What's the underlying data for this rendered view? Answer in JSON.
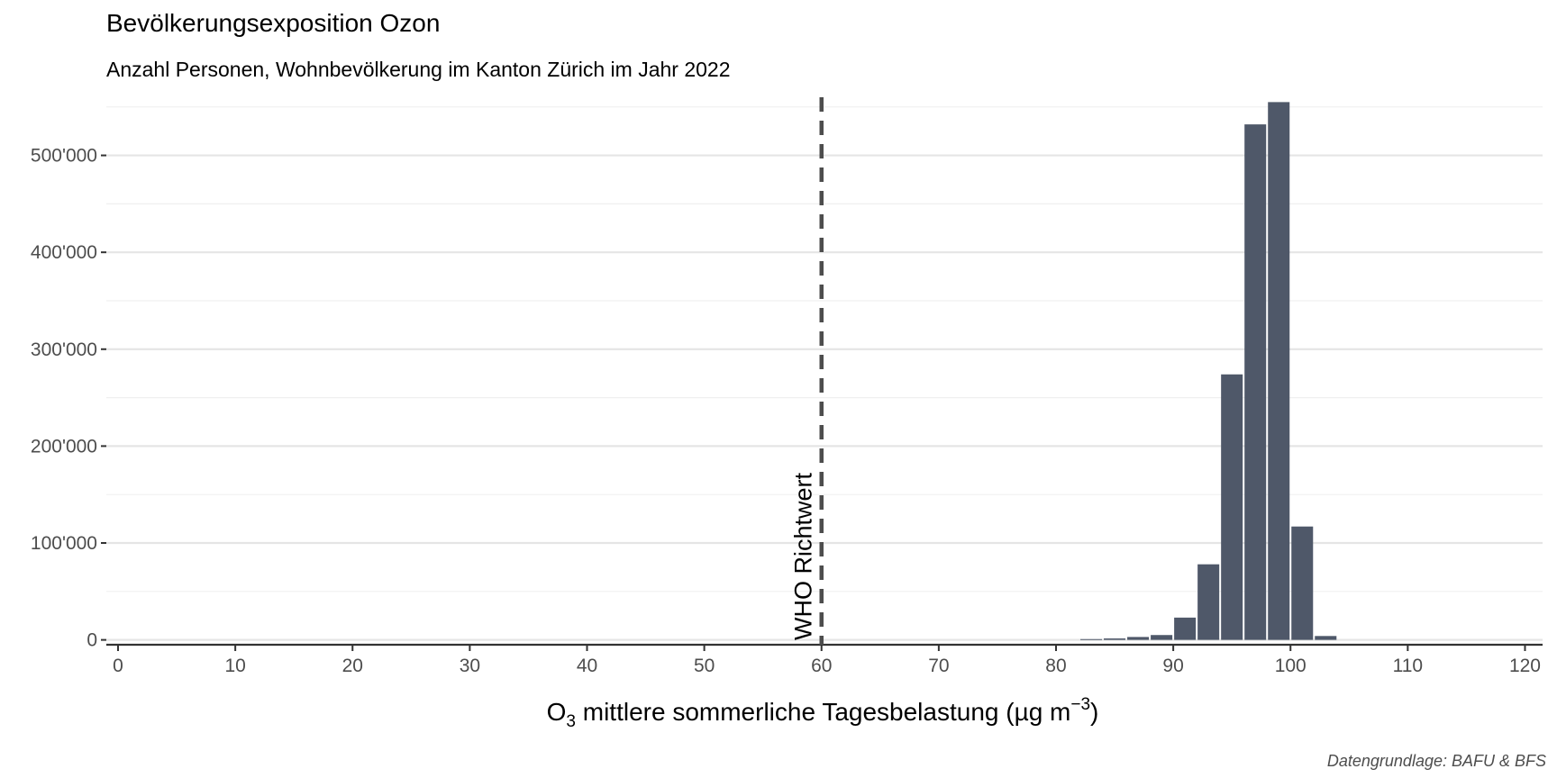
{
  "chart_data": {
    "type": "bar",
    "title": "Bevölkerungsexposition Ozon",
    "subtitle": "Anzahl Personen, Wohnbevölkerung im Kanton Zürich im Jahr 2022",
    "xlabel": {
      "base": "O",
      "sub": "3",
      "text": " mittlere sommerliche Tagesbelastung (µg m",
      "sup": "−3",
      "end": ")"
    },
    "ylabel": "",
    "xlim": [
      -1,
      121.5
    ],
    "ylim": [
      -5000,
      560000
    ],
    "x_ticks": [
      0,
      10,
      20,
      30,
      40,
      50,
      60,
      70,
      80,
      90,
      100,
      110,
      120
    ],
    "y_ticks": [
      0,
      100000,
      200000,
      300000,
      400000,
      500000
    ],
    "y_tick_labels": [
      "0",
      "100'000",
      "200'000",
      "300'000",
      "400'000",
      "500'000"
    ],
    "grid": {
      "major_y": true,
      "minor_y": true,
      "x": false
    },
    "bin_width": 2,
    "bars": [
      {
        "x": 83,
        "value": 800
      },
      {
        "x": 85,
        "value": 1500
      },
      {
        "x": 87,
        "value": 3000
      },
      {
        "x": 89,
        "value": 5000
      },
      {
        "x": 91,
        "value": 23000
      },
      {
        "x": 93,
        "value": 78000
      },
      {
        "x": 95,
        "value": 274000
      },
      {
        "x": 97,
        "value": 532000
      },
      {
        "x": 99,
        "value": 555000
      },
      {
        "x": 101,
        "value": 117000
      },
      {
        "x": 103,
        "value": 4000
      }
    ],
    "reference_line": {
      "x": 60,
      "label": "WHO Richtwert",
      "style": "dashed"
    },
    "bar_color": "#4f5869",
    "caption": "Datengrundlage: BAFU & BFS"
  }
}
